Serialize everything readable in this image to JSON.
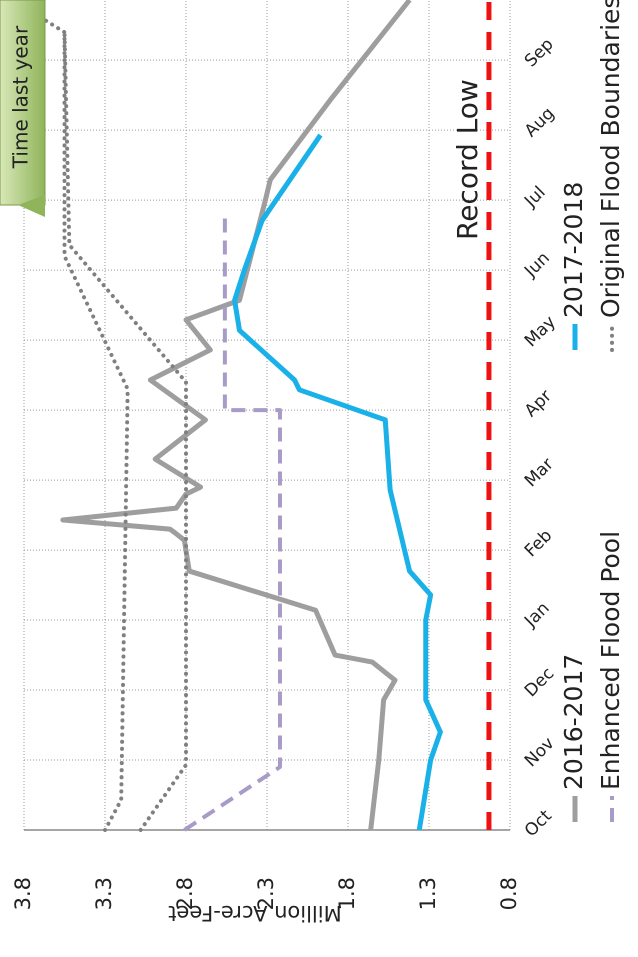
{
  "chart_data": {
    "type": "line",
    "y_label": "Million Acre-Feet",
    "xlim": [
      0,
      11.86
    ],
    "xticks": [
      {
        "value": 0,
        "label": "Oct"
      },
      {
        "value": 1,
        "label": "Nov"
      },
      {
        "value": 2,
        "label": "Dec"
      },
      {
        "value": 3,
        "label": "Jan"
      },
      {
        "value": 4,
        "label": "Feb"
      },
      {
        "value": 5,
        "label": "Mar"
      },
      {
        "value": 6,
        "label": "Apr"
      },
      {
        "value": 7,
        "label": "May"
      },
      {
        "value": 8,
        "label": "Jun"
      },
      {
        "value": 9,
        "label": "Jul"
      },
      {
        "value": 10,
        "label": "Aug"
      },
      {
        "value": 11,
        "label": "Sep"
      }
    ],
    "ylim": [
      0.8,
      3.8
    ],
    "yticks": [
      0.8,
      1.3,
      1.8,
      2.3,
      2.8,
      3.3,
      3.8
    ],
    "grid": true,
    "series": [
      {
        "name": "2016-2017",
        "color": "#9e9e9e",
        "style": "solid",
        "x": [
          0,
          1,
          1.86,
          2.14,
          2.4,
          2.5,
          3.14,
          3.7,
          4.14,
          4.25,
          4.3,
          4.43,
          4.6,
          4.8,
          4.9,
          5.3,
          5.86,
          6.43,
          6.86,
          7.29,
          7.57,
          9,
          9.29,
          10.43,
          11.86
        ],
        "values": [
          1.66,
          1.61,
          1.58,
          1.51,
          1.65,
          1.88,
          2.0,
          2.78,
          2.81,
          2.87,
          2.9,
          3.56,
          2.86,
          2.8,
          2.71,
          2.99,
          2.68,
          3.02,
          2.65,
          2.8,
          2.47,
          2.31,
          2.28,
          1.91,
          1.42
        ]
      },
      {
        "name": "2017-2018",
        "color": "#1ab0e8",
        "style": "solid",
        "x": [
          0,
          1,
          1.4,
          1.86,
          3,
          3.36,
          3.7,
          4.86,
          5.86,
          6.29,
          6.43,
          7.14,
          7.57,
          8,
          8.71,
          9.93
        ],
        "values": [
          1.36,
          1.29,
          1.23,
          1.32,
          1.32,
          1.29,
          1.42,
          1.54,
          1.57,
          2.1,
          2.13,
          2.47,
          2.5,
          2.44,
          2.33,
          1.97
        ]
      },
      {
        "name": "Enhanced Flood Pool",
        "color": "#a89bc8",
        "style": "dashed",
        "x": [
          0,
          0.9,
          6.0,
          6.0,
          8.8
        ],
        "values": [
          2.81,
          2.22,
          2.22,
          2.56,
          2.56
        ]
      },
      {
        "name": "Original Flood Boundaries",
        "color": "#808080",
        "style": "dotted",
        "x": [
          0,
          0.43,
          6.3,
          8.2,
          11.4,
          11.86
        ],
        "values": [
          3.3,
          3.2,
          3.16,
          3.55,
          3.55,
          3.87
        ]
      },
      {
        "color": "#808080",
        "style": "dotted",
        "x": [
          0,
          0.93,
          6.4,
          8.36,
          11.4
        ],
        "values": [
          3.08,
          2.8,
          2.8,
          3.52,
          3.55
        ]
      }
    ],
    "reference_line": {
      "value": 0.93,
      "label": "Record Low",
      "color": "#ee1111"
    },
    "callout": "Time last year"
  }
}
